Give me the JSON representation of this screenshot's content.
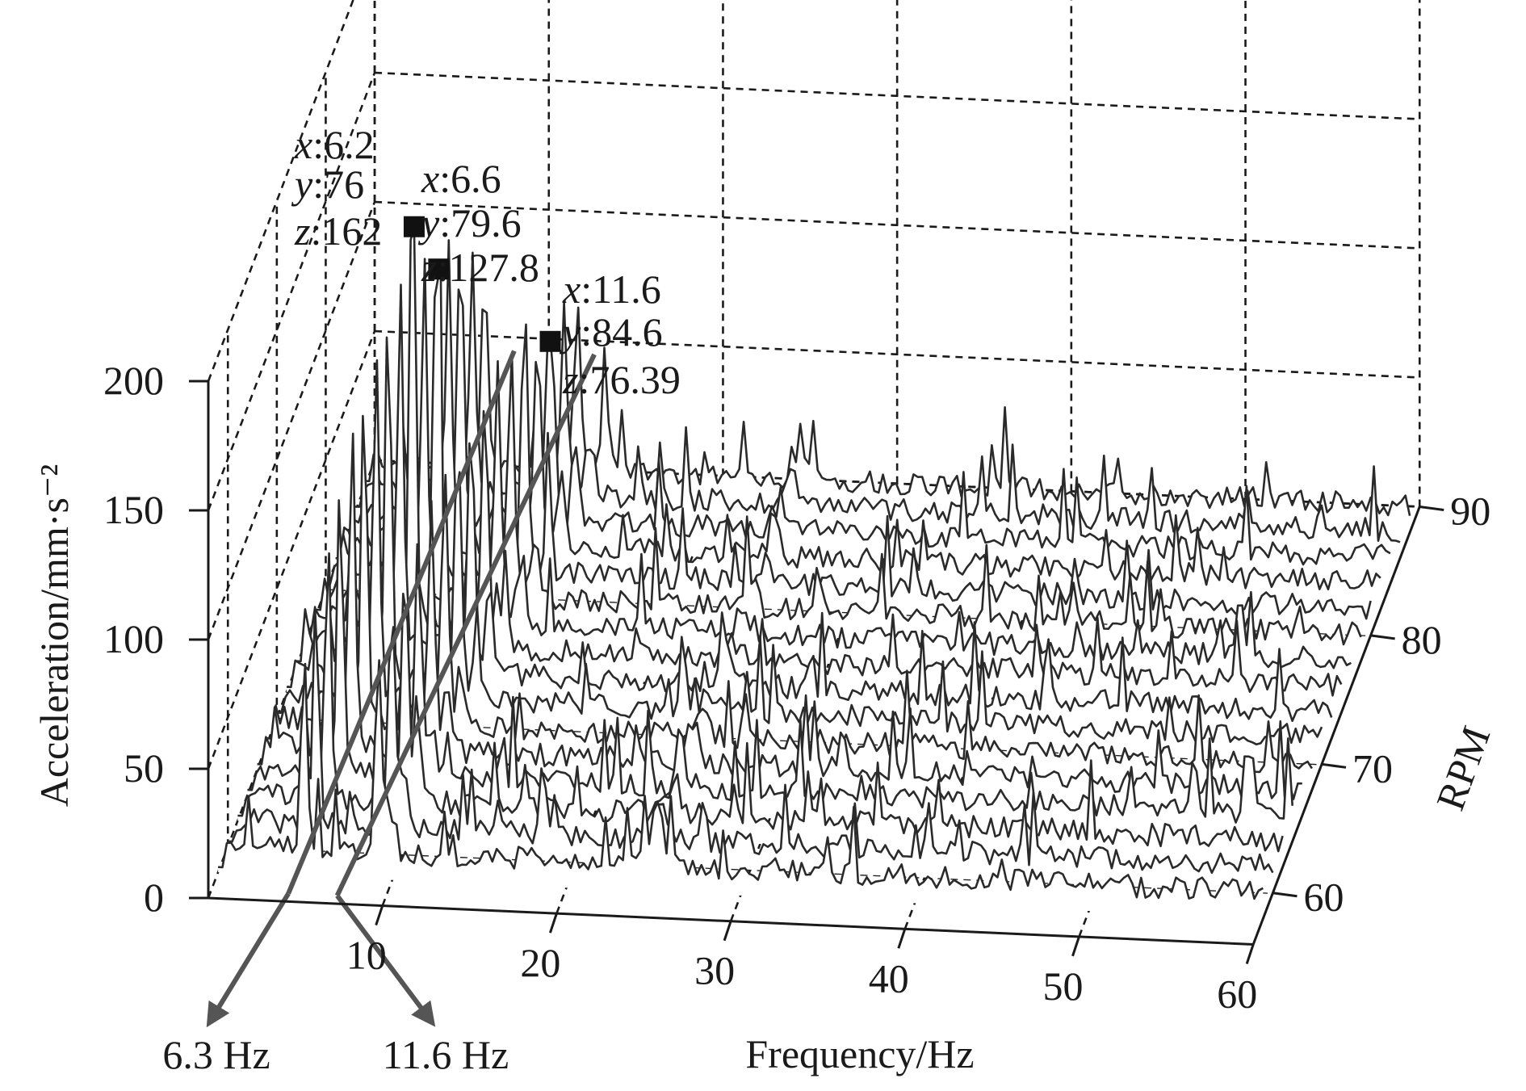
{
  "chart_data": {
    "type": "waterfall",
    "xlabel": "Frequency/Hz",
    "ylabel": "RPM",
    "zlabel": "Acceleration/mm·s⁻²",
    "x_ticks": [
      10,
      20,
      30,
      40,
      50,
      60
    ],
    "y_ticks": [
      60,
      70,
      80,
      90
    ],
    "z_ticks": [
      0,
      50,
      100,
      150,
      200
    ],
    "xlim": [
      0,
      60
    ],
    "ylim": [
      56,
      90
    ],
    "zlim": [
      0,
      200
    ],
    "grid": true,
    "rpm_series": [
      58,
      60,
      62,
      64,
      66,
      68,
      70,
      72,
      74,
      76,
      78,
      80,
      82,
      84,
      86,
      88
    ],
    "peaks": [
      {
        "x": 6.2,
        "y": 76,
        "z": 162,
        "x_text": "6.2",
        "y_text": "76",
        "z_text": "162"
      },
      {
        "x": 6.6,
        "y": 79.6,
        "z": 127.8,
        "x_text": "6.6",
        "y_text": "79.6",
        "z_text": "127.8"
      },
      {
        "x": 11.6,
        "y": 84.6,
        "z": 76.39,
        "x_text": "11.6",
        "y_text": "84.6",
        "z_text": "76.39"
      }
    ],
    "annotation_keys": [
      "x",
      "y",
      "z"
    ],
    "trend_labels": [
      {
        "freq": 6.3,
        "text": "6.3 Hz"
      },
      {
        "freq": 11.6,
        "text": "11.6 Hz"
      }
    ]
  }
}
